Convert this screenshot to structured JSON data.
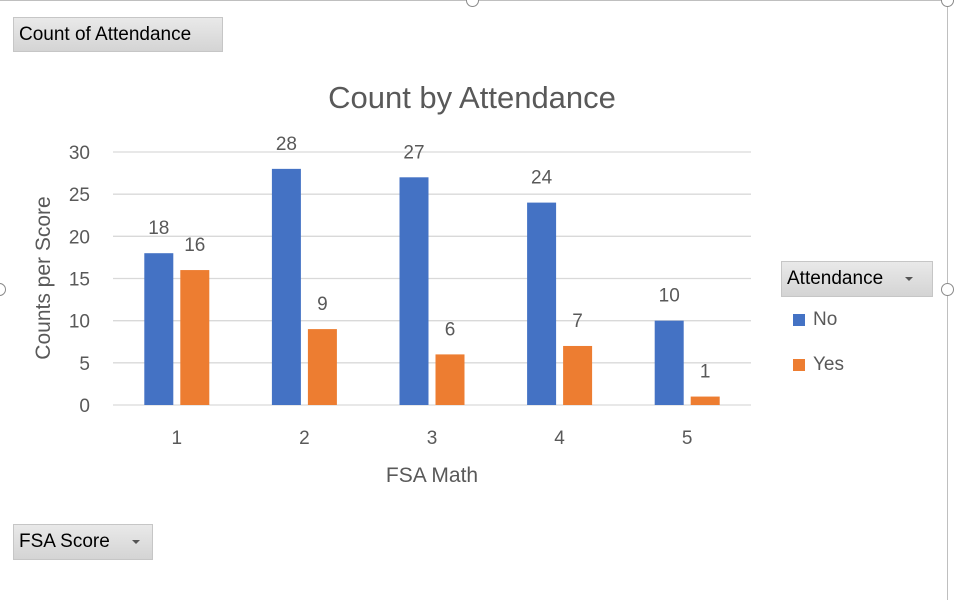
{
  "values_button": {
    "label": "Count of Attendance"
  },
  "legend_button": {
    "label": "Attendance"
  },
  "axis_button": {
    "label": "FSA Score"
  },
  "colors": {
    "no": "#4472c4",
    "yes": "#ed7d31",
    "grid": "#d9d9d9",
    "text": "#595959"
  },
  "chart_data": {
    "type": "bar",
    "title": "Count by Attendance",
    "xlabel": "FSA Math",
    "ylabel": "Counts per Score",
    "categories": [
      "1",
      "2",
      "3",
      "4",
      "5"
    ],
    "ylim": [
      0,
      30
    ],
    "yticks": [
      0,
      5,
      10,
      15,
      20,
      25,
      30
    ],
    "grid": true,
    "legend_placement": "right",
    "series": [
      {
        "name": "No",
        "values": [
          18,
          28,
          27,
          24,
          10
        ]
      },
      {
        "name": "Yes",
        "values": [
          16,
          9,
          6,
          7,
          1
        ]
      }
    ]
  }
}
